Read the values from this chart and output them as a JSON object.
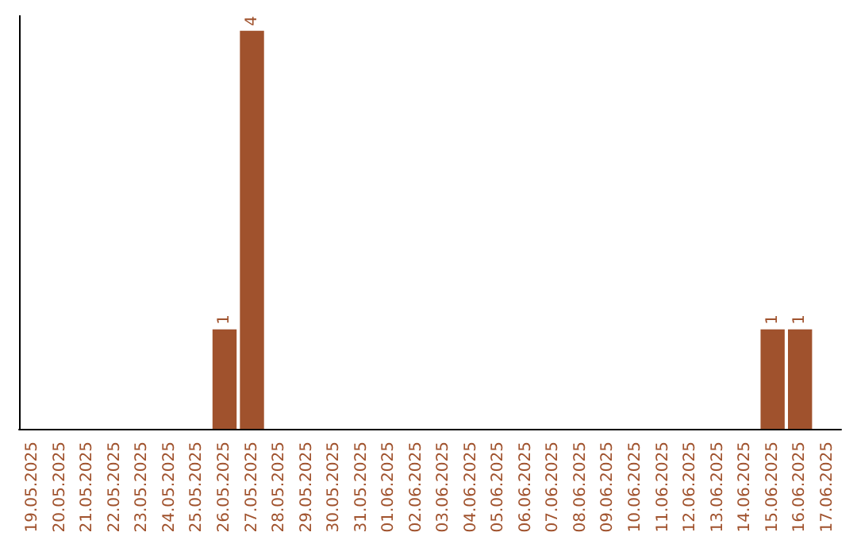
{
  "chart_data": {
    "type": "bar",
    "categories": [
      "19.05.2025",
      "20.05.2025",
      "21.05.2025",
      "22.05.2025",
      "23.05.2025",
      "24.05.2025",
      "25.05.2025",
      "26.05.2025",
      "27.05.2025",
      "28.05.2025",
      "29.05.2025",
      "30.05.2025",
      "31.05.2025",
      "01.06.2025",
      "02.06.2025",
      "03.06.2025",
      "04.06.2025",
      "05.06.2025",
      "06.06.2025",
      "07.06.2025",
      "08.06.2025",
      "09.06.2025",
      "10.06.2025",
      "11.06.2025",
      "12.06.2025",
      "13.06.2025",
      "14.06.2025",
      "15.06.2025",
      "16.06.2025",
      "17.06.2025"
    ],
    "values": [
      0,
      0,
      0,
      0,
      0,
      0,
      0,
      1,
      4,
      0,
      0,
      0,
      0,
      0,
      0,
      0,
      0,
      0,
      0,
      0,
      0,
      0,
      0,
      0,
      0,
      0,
      0,
      1,
      1,
      0
    ],
    "value_labels": [
      null,
      null,
      null,
      null,
      null,
      null,
      null,
      "1",
      "4",
      null,
      null,
      null,
      null,
      null,
      null,
      null,
      null,
      null,
      null,
      null,
      null,
      null,
      null,
      null,
      null,
      null,
      null,
      "1",
      "1",
      null
    ],
    "color": "#a0522d",
    "ylim": [
      0,
      4.15
    ],
    "tick_labels": "x",
    "grid": false
  }
}
